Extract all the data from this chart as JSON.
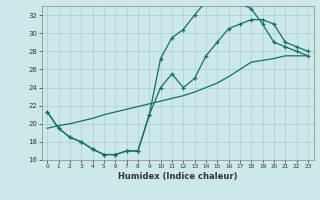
{
  "xlabel": "Humidex (Indice chaleur)",
  "background_color": "#cce8e8",
  "grid_color": "#aacfcf",
  "line_color": "#1a6b6b",
  "xlim": [
    -0.5,
    23.5
  ],
  "ylim": [
    16,
    33
  ],
  "yticks": [
    16,
    18,
    20,
    22,
    24,
    26,
    28,
    30,
    32
  ],
  "xticks": [
    0,
    1,
    2,
    3,
    4,
    5,
    6,
    7,
    8,
    9,
    10,
    11,
    12,
    13,
    14,
    15,
    16,
    17,
    18,
    19,
    20,
    21,
    22,
    23
  ],
  "line1_x": [
    0,
    1,
    2,
    3,
    4,
    5,
    6,
    7,
    8,
    9,
    10,
    11,
    12,
    13,
    14,
    15,
    16,
    17,
    18,
    19,
    20,
    21,
    22,
    23
  ],
  "line1_y": [
    21.3,
    19.5,
    18.5,
    18.0,
    17.2,
    16.6,
    16.6,
    17.0,
    17.0,
    21.0,
    27.2,
    29.5,
    30.4,
    32.0,
    33.5,
    33.5,
    33.5,
    33.3,
    32.7,
    31.0,
    29.0,
    28.5,
    28.0,
    27.5
  ],
  "line2_x": [
    0,
    1,
    2,
    3,
    4,
    5,
    6,
    7,
    8,
    9,
    10,
    11,
    12,
    13,
    14,
    15,
    16,
    17,
    18,
    19,
    20,
    21,
    22,
    23
  ],
  "line2_y": [
    21.3,
    19.5,
    18.5,
    18.0,
    17.2,
    16.6,
    16.6,
    17.0,
    17.0,
    21.0,
    24.0,
    25.5,
    24.0,
    25.0,
    27.5,
    29.0,
    30.5,
    31.0,
    31.5,
    31.5,
    31.0,
    29.0,
    28.5,
    28.0
  ],
  "line3_x": [
    0,
    1,
    2,
    3,
    4,
    5,
    6,
    7,
    8,
    9,
    10,
    11,
    12,
    13,
    14,
    15,
    16,
    17,
    18,
    19,
    20,
    21,
    22,
    23
  ],
  "line3_y": [
    19.5,
    19.8,
    20.0,
    20.3,
    20.6,
    21.0,
    21.3,
    21.6,
    21.9,
    22.2,
    22.5,
    22.8,
    23.1,
    23.5,
    24.0,
    24.5,
    25.2,
    26.0,
    26.8,
    27.0,
    27.2,
    27.5,
    27.5,
    27.5
  ]
}
